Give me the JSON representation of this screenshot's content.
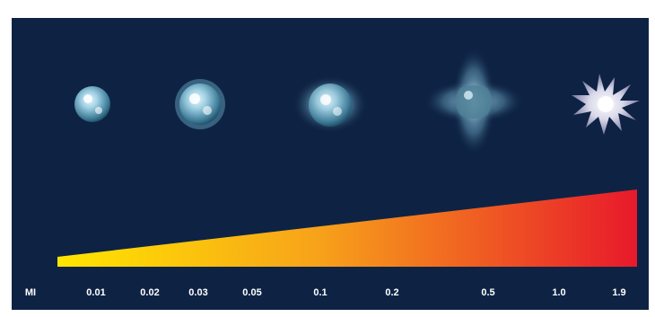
{
  "scale": {
    "prefix": "MI",
    "values": [
      "0.01",
      "0.02",
      "0.03",
      "0.05",
      "0.1",
      "0.2",
      "0.5",
      "1.0",
      "1.9"
    ]
  },
  "bubbles": [
    {
      "state": "small-sphere",
      "icon": "bubble-stable-icon"
    },
    {
      "state": "expanded-sphere",
      "icon": "bubble-oscillating-icon"
    },
    {
      "state": "glowing-sphere",
      "icon": "bubble-stable-cavitation-icon"
    },
    {
      "state": "deformed-bubble",
      "icon": "bubble-deformation-icon"
    },
    {
      "state": "collapsing-burst",
      "icon": "bubble-inertial-cavitation-icon"
    }
  ],
  "colors": {
    "background": "#0e2344",
    "gradient_start": "#ffe600",
    "gradient_end": "#e8192b",
    "bubble": "#8fc3d9"
  }
}
